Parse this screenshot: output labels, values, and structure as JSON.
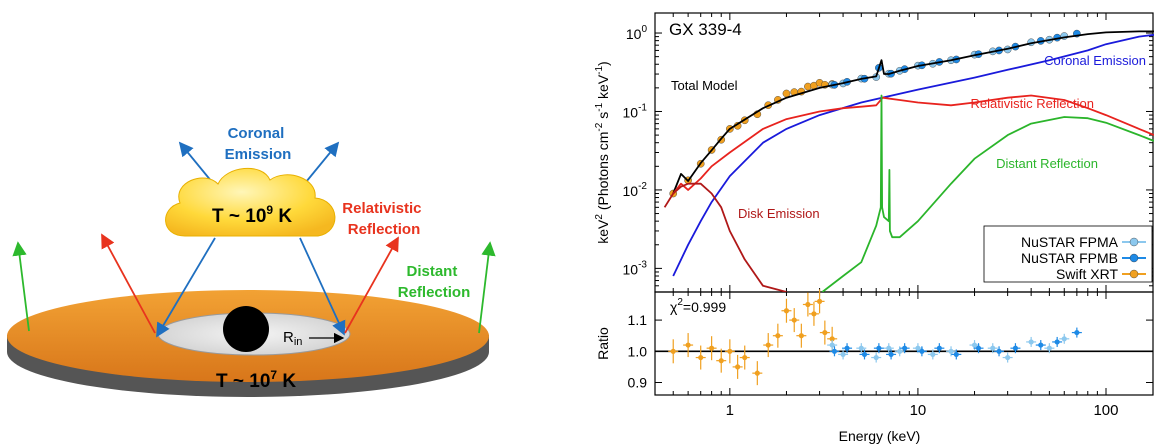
{
  "diagram": {
    "cloud_label": "T ~ 10",
    "cloud_sup": "9",
    "cloud_unit": " K",
    "disk_label": "T ~ 10",
    "disk_sup": "7",
    "disk_unit": " K",
    "rin_label": "R",
    "rin_sub": "in",
    "coronal_line1": "Coronal",
    "coronal_line2": "Emission",
    "relativistic_line1": "Relativistic",
    "relativistic_line2": "Reflection",
    "distant_line1": "Distant",
    "distant_line2": "Reflection",
    "colors": {
      "coronal": "#1f6fc0",
      "relativistic": "#e8331e",
      "distant": "#2db92d",
      "disk_orange": "#e68a1e",
      "cloud": "#ffd23a"
    }
  },
  "chart_data": [
    {
      "type": "line",
      "title": "GX 339-4",
      "xlabel": "Energy (keV)",
      "ylabel_parts": [
        "keV",
        "2",
        " (Photons cm",
        "-2",
        " s",
        "-1",
        " keV",
        "-1",
        ")"
      ],
      "xscale": "log",
      "yscale": "log",
      "xlim": [
        0.4,
        180
      ],
      "ylim": [
        0.0005,
        1.8
      ],
      "xticks": [
        "1",
        "10",
        "100"
      ],
      "yticks": [
        {
          "base": "10",
          "exp": "0"
        },
        {
          "base": "10",
          "exp": "-1"
        },
        {
          "base": "10",
          "exp": "-2"
        },
        {
          "base": "10",
          "exp": "-3"
        }
      ],
      "annotations": {
        "total": "Total Model",
        "coronal": "Coronal Emission",
        "relativistic": "Relativistic Reflection",
        "distant": "Distant Reflection",
        "disk": "Disk Emission"
      },
      "legend": [
        "NuSTAR FPMA",
        "NuSTAR FPMB",
        "Swift XRT"
      ],
      "legend_position": "bottom-right",
      "series": [
        {
          "name": "Total Model",
          "color": "#000000",
          "x": [
            0.5,
            0.55,
            0.6,
            0.7,
            0.8,
            0.9,
            1,
            1.5,
            2,
            3,
            4,
            5,
            6,
            6.4,
            6.6,
            7,
            8,
            10,
            15,
            20,
            30,
            40,
            60,
            80,
            100,
            150,
            180
          ],
          "y": [
            0.009,
            0.016,
            0.013,
            0.022,
            0.032,
            0.045,
            0.06,
            0.11,
            0.15,
            0.2,
            0.23,
            0.26,
            0.28,
            0.45,
            0.3,
            0.3,
            0.33,
            0.38,
            0.45,
            0.52,
            0.63,
            0.74,
            0.88,
            0.97,
            1.02,
            1.05,
            1.05
          ]
        },
        {
          "name": "Coronal Emission",
          "color": "#1a1adb",
          "x": [
            0.5,
            0.6,
            0.7,
            0.8,
            1,
            1.5,
            2,
            3,
            5,
            10,
            20,
            30,
            50,
            80,
            100,
            150,
            180
          ],
          "y": [
            0.0008,
            0.002,
            0.004,
            0.007,
            0.015,
            0.04,
            0.06,
            0.09,
            0.13,
            0.19,
            0.27,
            0.34,
            0.45,
            0.6,
            0.72,
            0.9,
            0.95
          ]
        },
        {
          "name": "Relativistic Reflection",
          "color": "#e8231e",
          "x": [
            0.5,
            0.55,
            0.6,
            0.7,
            0.8,
            1,
            1.5,
            2,
            3,
            4,
            5,
            6,
            6.5,
            8,
            10,
            15,
            20,
            30,
            40,
            60,
            80,
            100,
            150,
            180
          ],
          "y": [
            0.009,
            0.012,
            0.01,
            0.014,
            0.02,
            0.03,
            0.06,
            0.08,
            0.1,
            0.11,
            0.115,
            0.12,
            0.15,
            0.14,
            0.13,
            0.12,
            0.13,
            0.15,
            0.16,
            0.14,
            0.11,
            0.09,
            0.06,
            0.05
          ]
        },
        {
          "name": "Distant Reflection",
          "color": "#2bb52b",
          "x": [
            3.1,
            4,
            5,
            6,
            6.35,
            6.4,
            6.45,
            6.6,
            7,
            7.05,
            7.1,
            7.3,
            8,
            10,
            15,
            20,
            30,
            40,
            60,
            80,
            100,
            150,
            180
          ],
          "y": [
            0.0005,
            0.0008,
            0.0012,
            0.0035,
            0.006,
            0.16,
            0.006,
            0.0045,
            0.004,
            0.018,
            0.003,
            0.0025,
            0.0025,
            0.004,
            0.012,
            0.025,
            0.05,
            0.07,
            0.085,
            0.082,
            0.072,
            0.05,
            0.042
          ]
        },
        {
          "name": "Disk Emission",
          "color": "#b01818",
          "x": [
            0.45,
            0.5,
            0.55,
            0.6,
            0.7,
            0.8,
            0.9,
            1,
            1.2,
            1.5,
            2
          ],
          "y": [
            0.006,
            0.009,
            0.011,
            0.012,
            0.012,
            0.009,
            0.006,
            0.003,
            0.0013,
            0.0006,
            0.0005
          ]
        }
      ]
    },
    {
      "type": "scatter",
      "ylabel": "Ratio",
      "xlabel": "Energy (keV)",
      "xscale": "log",
      "xlim": [
        0.4,
        180
      ],
      "ylim": [
        0.86,
        1.19
      ],
      "yticks": [
        "1.1",
        "1.0",
        "0.9"
      ],
      "stat_label_base": "χ",
      "stat_label_sup": "2",
      "stat_label_value": "=0.999",
      "series": [
        {
          "name": "Swift XRT",
          "color": "#f0a020",
          "x": [
            0.5,
            0.6,
            0.7,
            0.8,
            0.9,
            1.0,
            1.1,
            1.2,
            1.4,
            1.6,
            1.8,
            2.0,
            2.2,
            2.4,
            2.6,
            2.8,
            3.0,
            3.2,
            3.5
          ],
          "y": [
            1.0,
            1.02,
            0.98,
            1.01,
            0.97,
            1.0,
            0.95,
            0.98,
            0.93,
            1.02,
            1.05,
            1.13,
            1.1,
            1.05,
            1.15,
            1.12,
            1.16,
            1.06,
            1.04
          ]
        },
        {
          "name": "NuSTAR FPMA",
          "color": "#8cc8ee",
          "x": [
            3.5,
            4,
            5,
            6,
            7,
            8,
            10,
            12,
            15,
            20,
            25,
            30,
            40,
            50,
            60
          ],
          "y": [
            1.02,
            0.99,
            1.01,
            0.98,
            1.01,
            1.0,
            1.01,
            0.99,
            1.0,
            1.02,
            1.01,
            0.98,
            1.03,
            1.01,
            1.04
          ]
        },
        {
          "name": "NuSTAR FPMB",
          "color": "#1e8ae6",
          "x": [
            3.6,
            4.2,
            5.2,
            6.2,
            7.2,
            8.5,
            10.5,
            13,
            16,
            21,
            27,
            33,
            45,
            55,
            70
          ],
          "y": [
            1.0,
            1.01,
            0.99,
            1.01,
            0.99,
            1.01,
            1.0,
            1.01,
            0.99,
            1.01,
            1.0,
            1.01,
            1.02,
            1.03,
            1.06
          ]
        }
      ]
    }
  ]
}
